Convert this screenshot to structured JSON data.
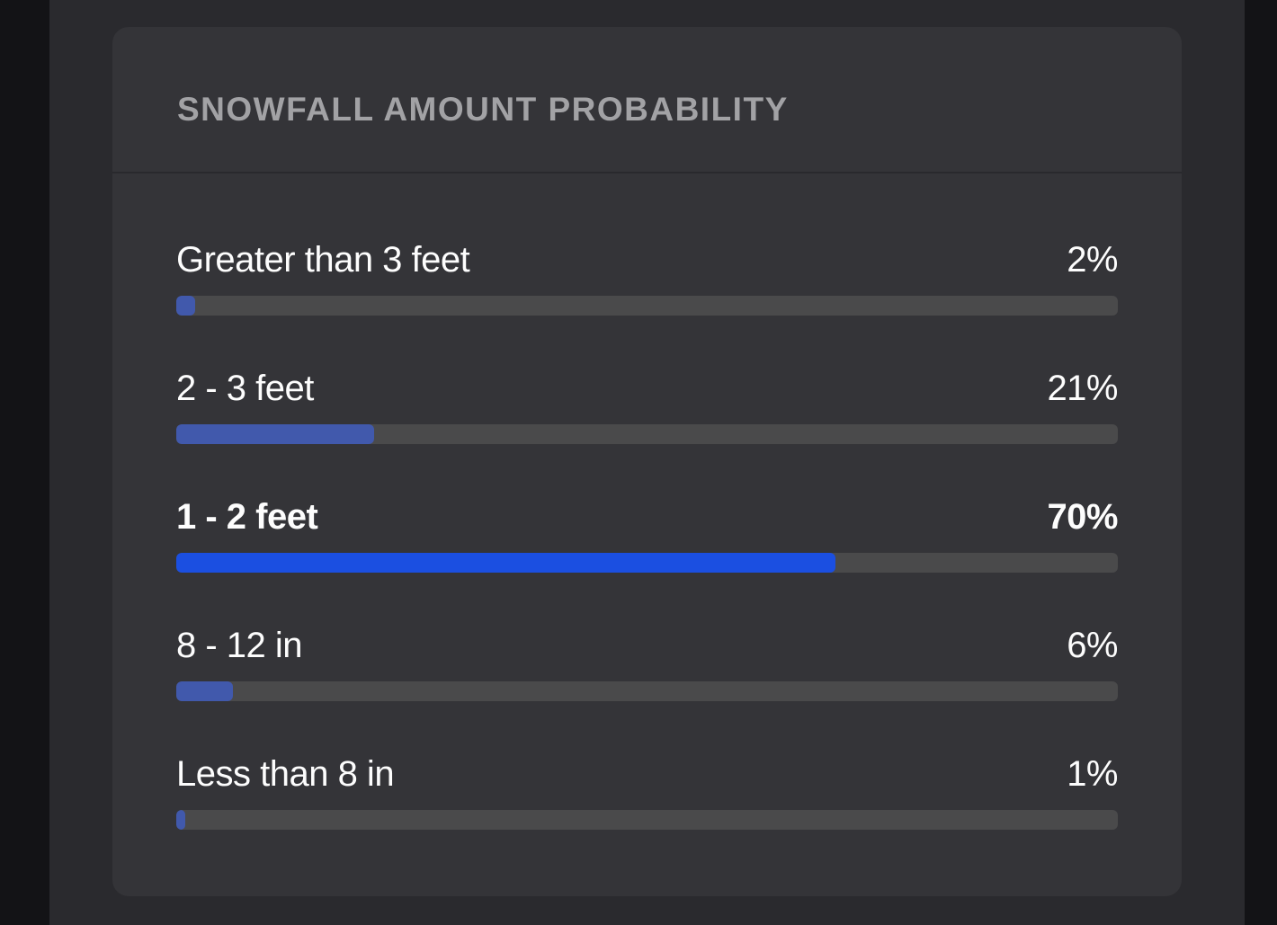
{
  "theme": {
    "page_bg": "#2a2a2e",
    "side_strip_bg": "#131316",
    "card_bg": "#343438",
    "divider_color": "#29292d",
    "track_color": "#4a4a4b",
    "bar_color": "#4159ac",
    "bar_color_highlight": "#1b4fe1",
    "header_text_color": "#a2a2a5",
    "label_text_color": "#fdfdfd"
  },
  "card": {
    "title": "SNOWFALL AMOUNT PROBABILITY",
    "rows": [
      {
        "label": "Greater than 3 feet",
        "percent_label": "2%",
        "value": 2,
        "highlight": false
      },
      {
        "label": "2 - 3 feet",
        "percent_label": "21%",
        "value": 21,
        "highlight": false
      },
      {
        "label": "1 - 2 feet",
        "percent_label": "70%",
        "value": 70,
        "highlight": true
      },
      {
        "label": "8 - 12 in",
        "percent_label": "6%",
        "value": 6,
        "highlight": false
      },
      {
        "label": "Less than 8 in",
        "percent_label": "1%",
        "value": 1,
        "highlight": false
      }
    ]
  },
  "chart_data": {
    "type": "bar",
    "orientation": "horizontal",
    "title": "SNOWFALL AMOUNT PROBABILITY",
    "categories": [
      "Greater than 3 feet",
      "2 - 3 feet",
      "1 - 2 feet",
      "8 - 12 in",
      "Less than 8 in"
    ],
    "values": [
      2,
      21,
      70,
      6,
      1
    ],
    "unit": "%",
    "xlim": [
      0,
      100
    ],
    "grid": false,
    "legend": false,
    "highlighted_category": "1 - 2 feet"
  }
}
